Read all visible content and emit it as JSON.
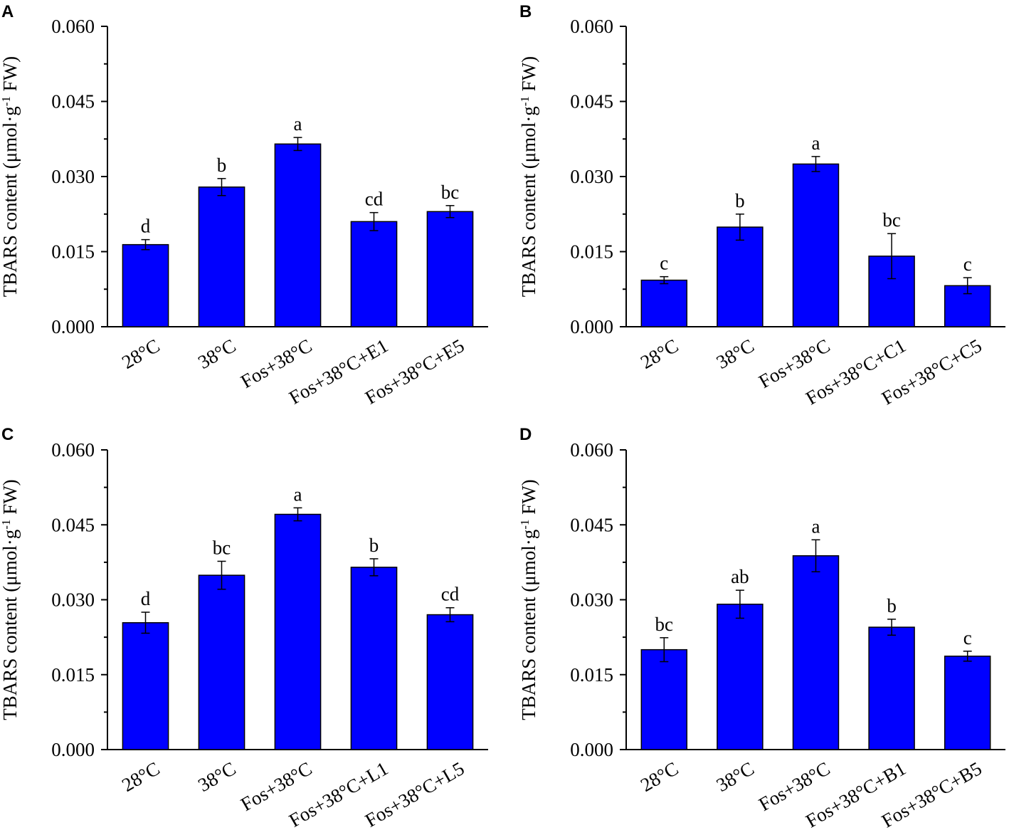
{
  "figure": {
    "y_label": {
      "main": "TBARS content (μmol·g",
      "sup": "-1",
      "tail": " FW)"
    }
  },
  "chart_data": [
    {
      "panel": "A",
      "type": "bar",
      "color": "#0000ff",
      "categories": [
        "28°C",
        "38°C",
        "Fos+38°C",
        "Fos+38°C+E1",
        "Fos+38°C+E5"
      ],
      "values": [
        0.0164,
        0.0279,
        0.0365,
        0.021,
        0.023
      ],
      "errors": [
        0.001,
        0.0017,
        0.0013,
        0.0018,
        0.0012
      ],
      "letters": [
        "d",
        "b",
        "a",
        "cd",
        "bc"
      ],
      "ylim": [
        0,
        0.06
      ],
      "yticks": [
        "0.000",
        "0.015",
        "0.030",
        "0.045",
        "0.060"
      ],
      "ylabel": "TBARS content (μmol·g-1 FW)"
    },
    {
      "panel": "B",
      "type": "bar",
      "color": "#0000ff",
      "categories": [
        "28°C",
        "38°C",
        "Fos+38°C",
        "Fos+38°C+C1",
        "Fos+38°C+C5"
      ],
      "values": [
        0.0093,
        0.0199,
        0.0325,
        0.0141,
        0.0082
      ],
      "errors": [
        0.0007,
        0.0026,
        0.0015,
        0.0045,
        0.0016
      ],
      "letters": [
        "c",
        "b",
        "a",
        "bc",
        "c"
      ],
      "ylim": [
        0,
        0.06
      ],
      "yticks": [
        "0.000",
        "0.015",
        "0.030",
        "0.045",
        "0.060"
      ],
      "ylabel": "TBARS content (μmol·g-1 FW)"
    },
    {
      "panel": "C",
      "type": "bar",
      "color": "#0000ff",
      "categories": [
        "28°C",
        "38°C",
        "Fos+38°C",
        "Fos+38°C+L1",
        "Fos+38°C+L5"
      ],
      "values": [
        0.0254,
        0.0349,
        0.0471,
        0.0365,
        0.027
      ],
      "errors": [
        0.0021,
        0.0028,
        0.0013,
        0.0017,
        0.0014
      ],
      "letters": [
        "d",
        "bc",
        "a",
        "b",
        "cd"
      ],
      "ylim": [
        0,
        0.06
      ],
      "yticks": [
        "0.000",
        "0.015",
        "0.030",
        "0.045",
        "0.060"
      ],
      "ylabel": "TBARS content (μmol·g-1 FW)"
    },
    {
      "panel": "D",
      "type": "bar",
      "color": "#0000ff",
      "categories": [
        "28°C",
        "38°C",
        "Fos+38°C",
        "Fos+38°C+B1",
        "Fos+38°C+B5"
      ],
      "values": [
        0.02,
        0.0291,
        0.0388,
        0.0245,
        0.0187
      ],
      "errors": [
        0.0024,
        0.0028,
        0.0032,
        0.0016,
        0.001
      ],
      "letters": [
        "bc",
        "ab",
        "a",
        "b",
        "c"
      ],
      "ylim": [
        0,
        0.06
      ],
      "yticks": [
        "0.000",
        "0.015",
        "0.030",
        "0.045",
        "0.060"
      ],
      "ylabel": "TBARS content (μmol·g-1 FW)"
    }
  ]
}
